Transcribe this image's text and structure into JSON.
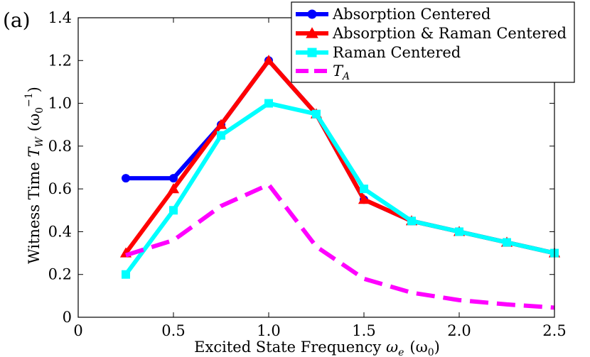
{
  "panel_label": "(a)",
  "chart_data": {
    "type": "line",
    "xlabel_text": "Excited State Frequency ",
    "xlabel_symbol": "ω",
    "xlabel_sub": "e",
    "xlabel_unit": "(ω",
    "xlabel_unit_sub": "0",
    "xlabel_unit_close": ")",
    "ylabel_text": "Witness Time ",
    "ylabel_symbol": "T",
    "ylabel_sub": "W",
    "ylabel_unit": "(ω",
    "ylabel_unit_sub": "0",
    "ylabel_unit_sup": "−1",
    "ylabel_unit_close": ")",
    "xlim": [
      0,
      2.5
    ],
    "ylim": [
      0,
      1.4
    ],
    "x_ticks": [
      0,
      0.5,
      1.0,
      1.5,
      2.0,
      2.5
    ],
    "x_tick_labels": [
      "0",
      "0.5",
      "1.0",
      "1.5",
      "2.0",
      "2.5"
    ],
    "y_ticks": [
      0,
      0.2,
      0.4,
      0.6,
      0.8,
      1.0,
      1.2,
      1.4
    ],
    "y_tick_labels": [
      "0",
      "0.2",
      "0.4",
      "0.6",
      "0.8",
      "1.0",
      "1.2",
      "1.4"
    ],
    "grid": false,
    "legend_position": "top-right",
    "series": [
      {
        "name": "Absorption Centered",
        "color": "#0000ff",
        "marker": "circle",
        "dash": false,
        "x": [
          0.25,
          0.5,
          0.75,
          1.0,
          1.25,
          1.5,
          1.75,
          2.0,
          2.25,
          2.5
        ],
        "y": [
          0.65,
          0.65,
          0.9,
          1.2,
          0.95,
          0.55,
          0.45,
          0.4,
          0.35,
          0.3
        ]
      },
      {
        "name": "Absorption & Raman Centered",
        "color": "#ff0000",
        "marker": "triangle",
        "dash": false,
        "x": [
          0.25,
          0.5,
          0.75,
          1.0,
          1.25,
          1.5,
          1.75,
          2.0,
          2.25,
          2.5
        ],
        "y": [
          0.3,
          0.6,
          0.9,
          1.2,
          0.95,
          0.55,
          0.45,
          0.4,
          0.35,
          0.3
        ]
      },
      {
        "name": "Raman Centered",
        "color": "#00ffff",
        "marker": "square",
        "dash": false,
        "x": [
          0.25,
          0.5,
          0.75,
          1.0,
          1.25,
          1.5,
          1.75,
          2.0,
          2.25,
          2.5
        ],
        "y": [
          0.2,
          0.5,
          0.85,
          1.0,
          0.95,
          0.6,
          0.45,
          0.4,
          0.35,
          0.3
        ]
      },
      {
        "name_symbol": "T",
        "name_sub": "A",
        "color": "#ff00ff",
        "marker": "none",
        "dash": true,
        "x": [
          0.25,
          0.5,
          0.75,
          1.0,
          1.25,
          1.5,
          1.75,
          2.0,
          2.25,
          2.5
        ],
        "y": [
          0.29,
          0.36,
          0.52,
          0.62,
          0.33,
          0.18,
          0.115,
          0.08,
          0.06,
          0.045
        ]
      }
    ]
  }
}
